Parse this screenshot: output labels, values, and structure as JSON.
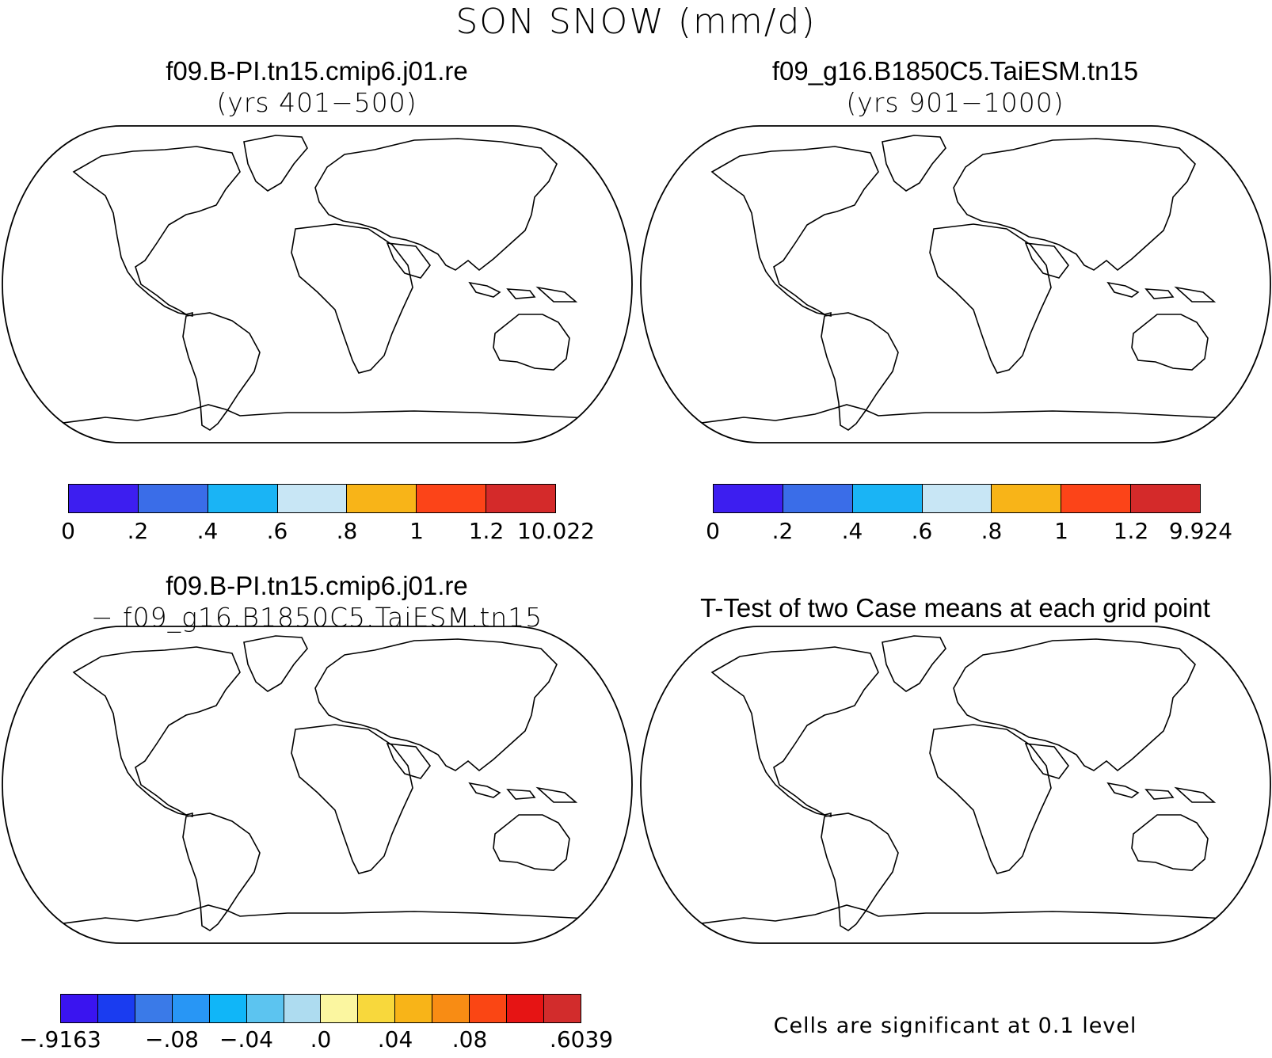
{
  "title": "SON SNOW (mm/d)",
  "panels": {
    "p1": {
      "title": "f09.B-PI.tn15.cmip6.j01.re",
      "subtitle": "(yrs 401−500)"
    },
    "p2": {
      "title": "f09_g16.B1850C5.TaiESM.tn15",
      "subtitle": "(yrs 901−1000)"
    },
    "p3": {
      "title": "f09.B-PI.tn15.cmip6.j01.re",
      "subtitle": "− f09_g16.B1850C5.TaiESM.tn15"
    },
    "p4": {
      "title": "T-Test of two Case means at each grid point",
      "footnote": "Cells are significant at 0.1 level"
    }
  },
  "colors": {
    "snow_levels": [
      "#3d1ef0",
      "#3a6de8",
      "#1ab4f5",
      "#c8e6f5",
      "#f8b418",
      "#fc4418",
      "#d42a2a"
    ],
    "diff_levels": [
      "#3a14f0",
      "#1a3cf0",
      "#3a7ae8",
      "#2896f5",
      "#10b6f8",
      "#5cc4f0",
      "#aedcf0",
      "#fbf6a0",
      "#f8d83c",
      "#f8b418",
      "#f88c14",
      "#fa4614",
      "#e61414",
      "#d22c2c"
    ],
    "significance": "#ff0000"
  },
  "chart_data": [
    {
      "type": "heatmap",
      "title": "f09.B-PI.tn15.cmip6.j01.re",
      "subtitle": "(yrs 401−500)",
      "colorbar_ticks": [
        "0",
        ".2",
        ".4",
        ".6",
        ".8",
        "1",
        "1.2",
        "10.022"
      ],
      "levels": [
        0,
        0.2,
        0.4,
        0.6,
        0.8,
        1,
        1.2,
        10.022
      ],
      "units": "mm/d"
    },
    {
      "type": "heatmap",
      "title": "f09_g16.B1850C5.TaiESM.tn15",
      "subtitle": "(yrs 901−1000)",
      "colorbar_ticks": [
        "0",
        ".2",
        ".4",
        ".6",
        ".8",
        "1",
        "1.2",
        "9.924"
      ],
      "levels": [
        0,
        0.2,
        0.4,
        0.6,
        0.8,
        1,
        1.2,
        9.924
      ],
      "units": "mm/d"
    },
    {
      "type": "heatmap",
      "title": "f09.B-PI.tn15.cmip6.j01.re",
      "subtitle": "− f09_g16.B1850C5.TaiESM.tn15",
      "colorbar_ticks": [
        "−.9163",
        "−.08",
        "−.04",
        ".0",
        ".04",
        ".08",
        ".6039"
      ],
      "levels": [
        -0.9163,
        -0.08,
        -0.04,
        0.0,
        0.04,
        0.08,
        0.6039
      ],
      "units": "mm/d"
    },
    {
      "type": "heatmap",
      "title": "T-Test of two Case means at each grid point",
      "note": "Cells are significant at 0.1 level"
    }
  ]
}
